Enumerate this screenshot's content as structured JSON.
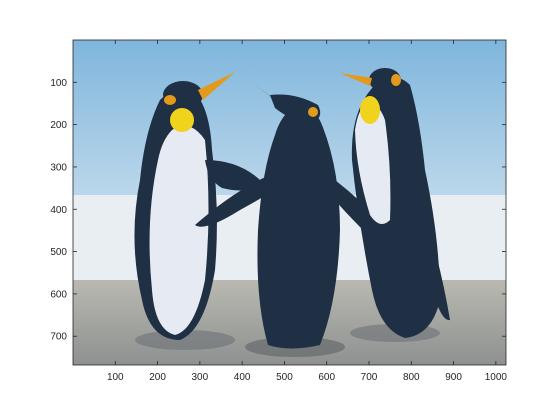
{
  "chart_data": {
    "type": "heatmap",
    "image_content": "pixelated photograph of three emperor penguins on snow against a blue sky",
    "xlim": [
      0,
      1024
    ],
    "ylim": [
      768,
      0
    ],
    "x_ticks": [
      {
        "value": 100,
        "label": "100"
      },
      {
        "value": 200,
        "label": "200"
      },
      {
        "value": 300,
        "label": "300"
      },
      {
        "value": 400,
        "label": "400"
      },
      {
        "value": 500,
        "label": "500"
      },
      {
        "value": 600,
        "label": "600"
      },
      {
        "value": 700,
        "label": "700"
      },
      {
        "value": 800,
        "label": "800"
      },
      {
        "value": 900,
        "label": "900"
      },
      {
        "value": 1000,
        "label": "1000"
      }
    ],
    "y_ticks": [
      {
        "value": 100,
        "label": "100"
      },
      {
        "value": 200,
        "label": "200"
      },
      {
        "value": 300,
        "label": "300"
      },
      {
        "value": 400,
        "label": "400"
      },
      {
        "value": 500,
        "label": "500"
      },
      {
        "value": 600,
        "label": "600"
      },
      {
        "value": 700,
        "label": "700"
      }
    ],
    "grid": false,
    "colors": {
      "sky_top": "#7fb6dc",
      "sky_bottom": "#dce9f3",
      "ground_top": "#b9b9b1",
      "ground_bottom": "#8e9190",
      "penguin_dark": "#1f2f44",
      "penguin_white": "#e6eaf2",
      "beak_orange": "#e39a1a",
      "chest_yellow": "#f1d21c",
      "axis": "#262626"
    }
  }
}
